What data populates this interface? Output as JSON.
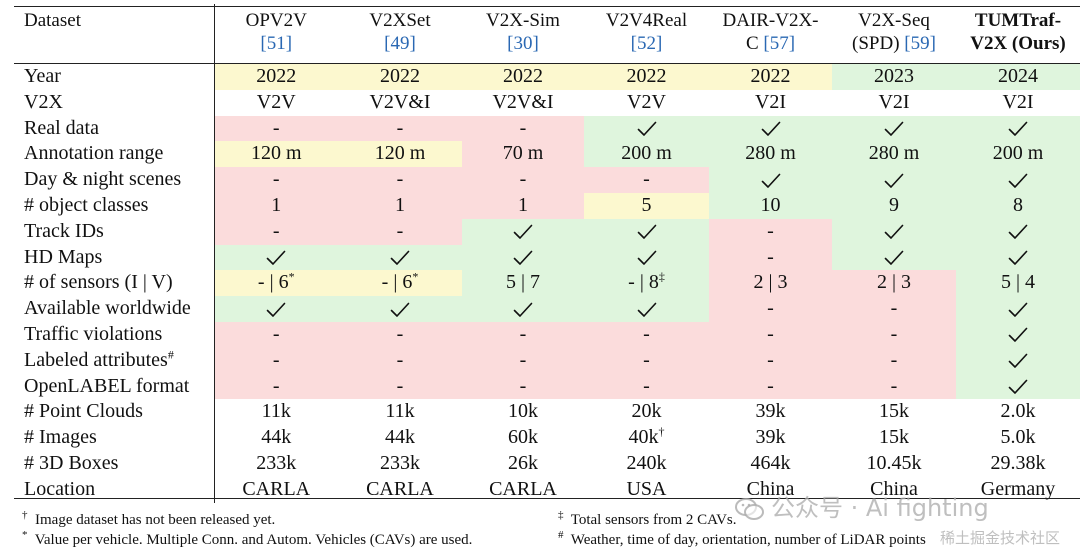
{
  "columns": [
    {
      "name": "OPV2V",
      "cite": "[51]"
    },
    {
      "name": "V2XSet",
      "cite": "[49]"
    },
    {
      "name": "V2X-Sim",
      "cite": "[30]"
    },
    {
      "name": "V2V4Real",
      "cite": "[52]"
    },
    {
      "name": "DAIR-V2X-",
      "name2": "C",
      "cite": "[57]"
    },
    {
      "name": "V2X-Seq",
      "name2": "(SPD)",
      "cite": "[59]"
    },
    {
      "name": "TUMTraf-",
      "name2": "V2X (Ours)",
      "cite": ""
    }
  ],
  "header_first": "Dataset",
  "rows": [
    {
      "label": "Year",
      "cells": [
        "2022",
        "2022",
        "2022",
        "2022",
        "2022",
        "2023",
        "2024"
      ]
    },
    {
      "label": "V2X",
      "cells": [
        "V2V",
        "V2V&I",
        "V2V&I",
        "V2V",
        "V2I",
        "V2I",
        "V2I"
      ]
    },
    {
      "label": "Real data",
      "cells": [
        "-",
        "-",
        "-",
        "✓",
        "✓",
        "✓",
        "✓"
      ]
    },
    {
      "label": "Annotation range",
      "cells": [
        "120 m",
        "120 m",
        "70 m",
        "200 m",
        "280 m",
        "280 m",
        "200 m"
      ]
    },
    {
      "label": "Day & night scenes",
      "cells": [
        "-",
        "-",
        "-",
        "-",
        "✓",
        "✓",
        "✓"
      ]
    },
    {
      "label": "# object classes",
      "cells": [
        "1",
        "1",
        "1",
        "5",
        "10",
        "9",
        "8"
      ]
    },
    {
      "label": "Track IDs",
      "cells": [
        "-",
        "-",
        "✓",
        "✓",
        "-",
        "✓",
        "✓"
      ]
    },
    {
      "label": "HD Maps",
      "cells": [
        "✓",
        "✓",
        "✓",
        "✓",
        "-",
        "✓",
        "✓"
      ]
    },
    {
      "label": "# of sensors (I | V)",
      "cells": [
        "- | 6",
        "- | 6",
        "5 | 7",
        "- | 8",
        "2 | 3",
        "2 | 3",
        "5 | 4"
      ]
    },
    {
      "label": "Available worldwide",
      "cells": [
        "✓",
        "✓",
        "✓",
        "✓",
        "-",
        "-",
        "✓"
      ]
    },
    {
      "label": "Traffic violations",
      "cells": [
        "-",
        "-",
        "-",
        "-",
        "-",
        "-",
        "✓"
      ]
    },
    {
      "label": "Labeled attributes",
      "cells": [
        "-",
        "-",
        "-",
        "-",
        "-",
        "-",
        "✓"
      ]
    },
    {
      "label": "OpenLABEL format",
      "cells": [
        "-",
        "-",
        "-",
        "-",
        "-",
        "-",
        "✓"
      ]
    },
    {
      "label": "# Point Clouds",
      "cells": [
        "11k",
        "11k",
        "10k",
        "20k",
        "39k",
        "15k",
        "2.0k"
      ]
    },
    {
      "label": "# Images",
      "cells": [
        "44k",
        "44k",
        "60k",
        "40k",
        "39k",
        "15k",
        "5.0k"
      ]
    },
    {
      "label": "# 3D Boxes",
      "cells": [
        "233k",
        "233k",
        "26k",
        "240k",
        "464k",
        "10.45k",
        "29.38k"
      ]
    },
    {
      "label": "Location",
      "cells": [
        "CARLA",
        "CARLA",
        "CARLA",
        "USA",
        "China",
        "China",
        "Germany"
      ]
    }
  ],
  "marks": {
    "dagger": "†",
    "ddagger": "‡",
    "star": "*",
    "hash": "#"
  },
  "footnotes": {
    "n1": {
      "mark": "†",
      "text": "Image dataset has not been released yet."
    },
    "n2": {
      "mark": "*",
      "text": "Value per vehicle. Multiple Conn. and Autom. Vehicles (CAVs) are used."
    },
    "n3": {
      "mark": "‡",
      "text": "Total sensors from 2 CAVs."
    },
    "n4": {
      "mark": "#",
      "text": "Weather, time of day, orientation, number of LiDAR points"
    }
  },
  "watermark": {
    "main": "公众号 · Ai fighting",
    "sub": "稀土掘金技术社区"
  },
  "colors": {
    "red": "#fbdcdc",
    "green": "#dff5dd",
    "yellow": "#fcf8cf"
  }
}
